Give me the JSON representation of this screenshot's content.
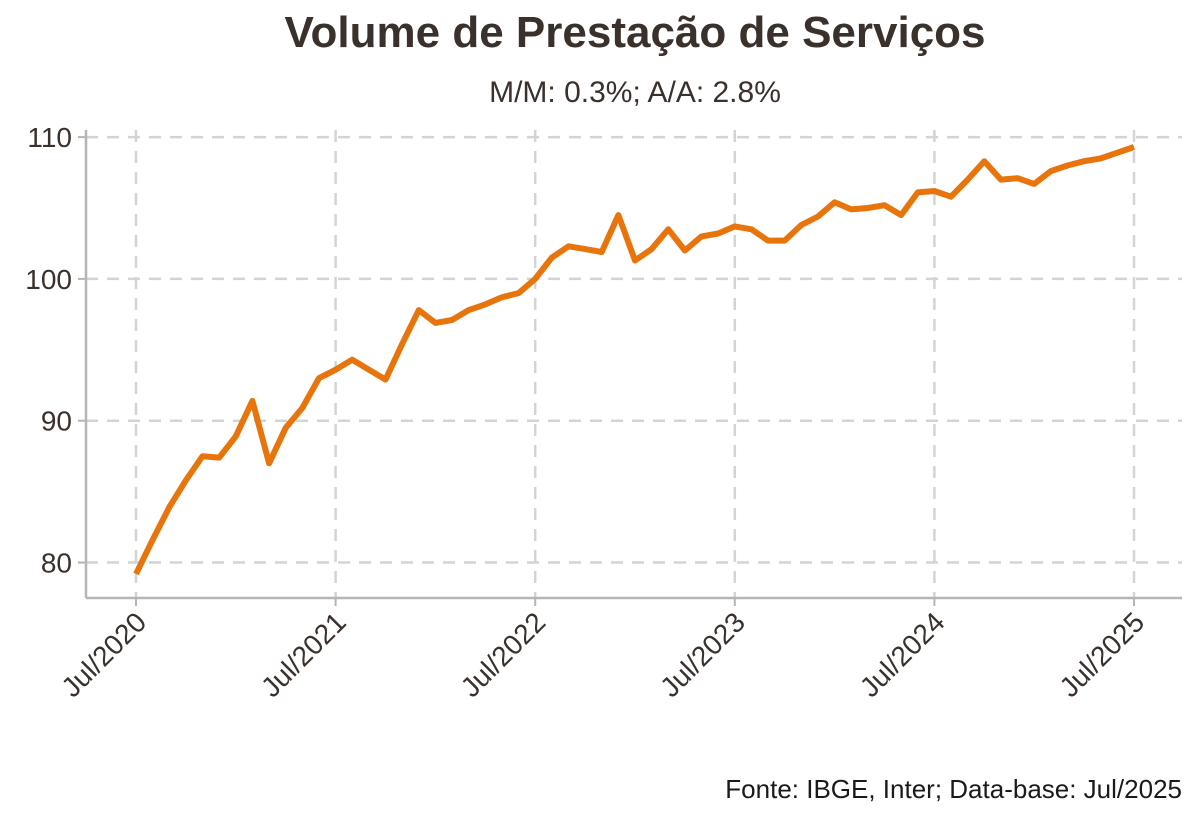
{
  "title": "Volume de Prestação de Serviços",
  "subtitle": "M/M: 0.3%; A/A: 2.8%",
  "caption": "Fonte: IBGE, Inter; Data-base: Jul/2025",
  "chart_data": {
    "type": "line",
    "title": "Volume de Prestação de Serviços",
    "subtitle": "M/M: 0.3%; A/A: 2.8%",
    "xlabel": "",
    "ylabel": "",
    "x_ticks": [
      "Jul/2020",
      "Jul/2021",
      "Jul/2022",
      "Jul/2023",
      "Jul/2024",
      "Jul/2025"
    ],
    "y_ticks": [
      80,
      90,
      100,
      110
    ],
    "ylim": [
      77.5,
      110.5
    ],
    "grid": true,
    "legend": "none",
    "line_color": "#e8740c",
    "x": [
      "Jul/2020",
      "Aug/2020",
      "Sep/2020",
      "Oct/2020",
      "Nov/2020",
      "Dec/2020",
      "Jan/2021",
      "Feb/2021",
      "Mar/2021",
      "Apr/2021",
      "May/2021",
      "Jun/2021",
      "Jul/2021",
      "Aug/2021",
      "Sep/2021",
      "Oct/2021",
      "Nov/2021",
      "Dec/2021",
      "Jan/2022",
      "Feb/2022",
      "Mar/2022",
      "Apr/2022",
      "May/2022",
      "Jun/2022",
      "Jul/2022",
      "Aug/2022",
      "Sep/2022",
      "Oct/2022",
      "Nov/2022",
      "Dec/2022",
      "Jan/2023",
      "Feb/2023",
      "Mar/2023",
      "Apr/2023",
      "May/2023",
      "Jun/2023",
      "Jul/2023",
      "Aug/2023",
      "Sep/2023",
      "Oct/2023",
      "Nov/2023",
      "Dec/2023",
      "Jan/2024",
      "Feb/2024",
      "Mar/2024",
      "Apr/2024",
      "May/2024",
      "Jun/2024",
      "Jul/2024",
      "Aug/2024",
      "Sep/2024",
      "Oct/2024",
      "Nov/2024",
      "Dec/2024",
      "Jan/2025",
      "Feb/2025",
      "Mar/2025",
      "Apr/2025",
      "May/2025",
      "Jun/2025",
      "Jul/2025"
    ],
    "series": [
      {
        "values": [
          79.2,
          81.6,
          83.9,
          85.8,
          87.5,
          87.4,
          88.9,
          91.4,
          87.0,
          89.5,
          90.9,
          93.0,
          93.6,
          94.3,
          93.6,
          92.9,
          95.4,
          97.8,
          96.9,
          97.1,
          97.8,
          98.2,
          98.7,
          99.0,
          100.0,
          101.5,
          102.3,
          102.1,
          101.9,
          104.5,
          101.3,
          102.1,
          103.5,
          102.0,
          103.0,
          103.2,
          103.7,
          103.5,
          102.7,
          102.7,
          103.8,
          104.4,
          105.4,
          104.9,
          105.0,
          105.2,
          104.5,
          106.1,
          106.2,
          105.8,
          107.0,
          108.3,
          107.0,
          107.1,
          106.7,
          107.6,
          108.0,
          108.3,
          108.5,
          108.9,
          109.3
        ]
      }
    ]
  }
}
